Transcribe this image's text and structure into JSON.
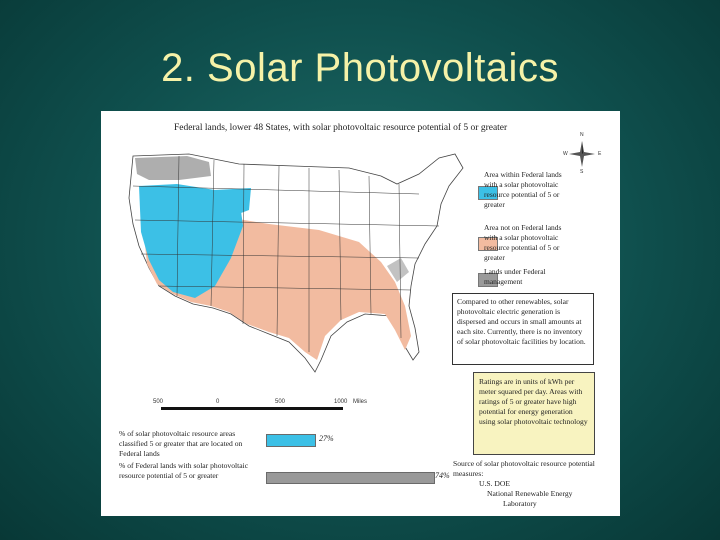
{
  "slide": {
    "title": "2. Solar Photovoltaics"
  },
  "map": {
    "title": "Federal lands, lower 48 States, with solar photovoltaic resource potential of 5 or greater",
    "colors": {
      "federal": "#3cc0e6",
      "non_federal": "#f2bba0",
      "federal_land": "#9a9a9a",
      "other": "#ffffff"
    },
    "compass_labels": [
      "N",
      "W",
      "E",
      "S"
    ]
  },
  "legend": [
    {
      "label": "Area within Federal lands with a solar photovoltaic resource potential of 5 or greater",
      "color": "#3cc0e6"
    },
    {
      "label": "Area not on Federal lands with a solar photovoltaic resource potential of 5 or greater",
      "color": "#f2bba0"
    },
    {
      "label": "Lands under Federal management",
      "color": "#9a9a9a"
    }
  ],
  "note": "Compared to other renewables, solar photovoltaic electric generation is dispersed and occurs in small amounts at each site. Currently, there is no inventory of solar photovoltaic facilities by location.",
  "ratings": "Ratings are in units of kWh per meter squared per day. Areas with ratings of 5 or greater have high potential for energy generation using solar photovoltaic technology",
  "scale": {
    "labels": [
      "500",
      "0",
      "500",
      "1000",
      "Miles"
    ]
  },
  "stats": [
    {
      "label": "% of solar photovoltaic resource areas classified 5 or greater that are located on Federal lands",
      "value": "27%",
      "fraction": 0.27
    },
    {
      "label": "% of Federal lands with solar photovoltaic resource potential of 5 or greater",
      "value": "74%",
      "fraction": 0.74
    }
  ],
  "source": {
    "intro": "Source of solar photovoltaic resource potential measures:",
    "org1": "U.S. DOE",
    "org2": "National Renewable Energy",
    "org3": "Laboratory"
  }
}
